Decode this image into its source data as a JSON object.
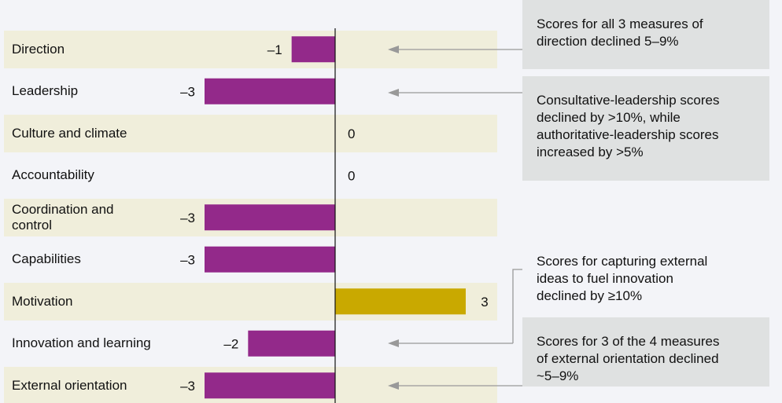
{
  "chart_data": {
    "type": "bar",
    "orientation": "horizontal",
    "categories": [
      "Direction",
      "Leadership",
      "Culture and climate",
      "Accountability",
      "Coordination and control",
      "Capabilities",
      "Motivation",
      "Innovation and learning",
      "External orientation"
    ],
    "values": [
      -1,
      -3,
      0,
      0,
      -3,
      -3,
      3,
      -2,
      -3
    ],
    "value_labels": [
      "–1",
      "–3",
      "0",
      "0",
      "–3",
      "–3",
      "3",
      "–2",
      "–3"
    ],
    "colors": [
      "#93298a",
      "#93298a",
      "#93298a",
      "#93298a",
      "#93298a",
      "#93298a",
      "#c9a900",
      "#93298a",
      "#93298a"
    ],
    "annotations": [
      {
        "lines": [
          "Scores for all 3 measures of",
          "direction declined 5–9%"
        ]
      },
      {
        "lines": [
          "Consultative-leadership scores",
          "declined by >10%, while",
          "authoritative-leadership scores",
          "increased by >5%"
        ]
      },
      {
        "lines": [
          "Scores for capturing external",
          "ideas to fuel innovation",
          "declined by ≥10%"
        ]
      },
      {
        "lines": [
          "Scores for 3 of the 4 measures",
          "of external orientation declined",
          "~5–9%"
        ]
      }
    ]
  }
}
